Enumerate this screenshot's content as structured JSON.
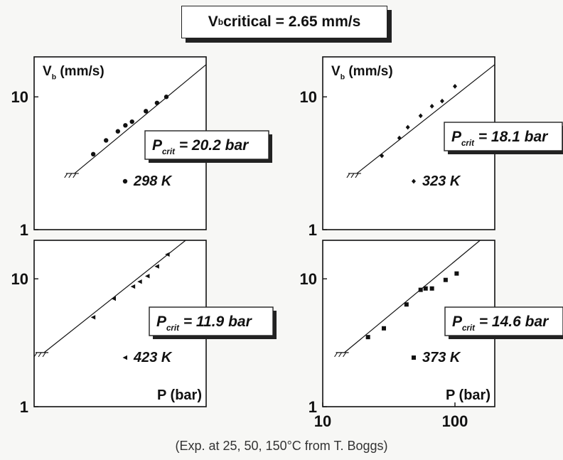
{
  "header": {
    "symbol": "V",
    "subscript": "b",
    "text": " critical = 2.65 mm/s"
  },
  "caption": "(Exp. at 25, 50, 150°C from T. Boggs)",
  "chart_data": [
    {
      "type": "scatter",
      "xscale": "log",
      "yscale": "log",
      "xlim": [
        10,
        200
      ],
      "ylim": [
        1,
        20
      ],
      "xticks": [],
      "yticks": [
        "1",
        "10"
      ],
      "ylabel": {
        "symbol": "V",
        "subscript": "b",
        "text": " (mm/s)"
      },
      "xlabel": "",
      "pcrit": {
        "symbol": "P",
        "subscript": "crit",
        "text": " = 20.2 bar"
      },
      "temperature": "298 K",
      "marker": "circle",
      "fit": {
        "x": [
          20.2,
          200
        ],
        "y": [
          2.65,
          17.5
        ]
      },
      "points": {
        "x": [
          28,
          35,
          43,
          49,
          55,
          70,
          85,
          100
        ],
        "y": [
          3.7,
          4.7,
          5.5,
          6.1,
          6.5,
          7.8,
          9.0,
          10.0
        ]
      }
    },
    {
      "type": "scatter",
      "xscale": "log",
      "yscale": "log",
      "xlim": [
        10,
        200
      ],
      "ylim": [
        1,
        20
      ],
      "xticks": [],
      "yticks": [
        "1",
        "10"
      ],
      "ylabel": {
        "symbol": "V",
        "subscript": "b",
        "text": " (mm/s)"
      },
      "xlabel": "",
      "pcrit": {
        "symbol": "P",
        "subscript": "crit",
        "text": " = 18.1 bar"
      },
      "temperature": "323 K",
      "marker": "diamond",
      "fit": {
        "x": [
          18.1,
          200
        ],
        "y": [
          2.65,
          17.5
        ]
      },
      "points": {
        "x": [
          28,
          38,
          44,
          55,
          67,
          80,
          100
        ],
        "y": [
          3.6,
          4.9,
          5.9,
          7.2,
          8.5,
          9.3,
          12.0
        ]
      }
    },
    {
      "type": "scatter",
      "xscale": "log",
      "yscale": "log",
      "xlim": [
        10,
        200
      ],
      "ylim": [
        1,
        20
      ],
      "xticks": [],
      "yticks": [
        "1",
        "10"
      ],
      "ylabel": null,
      "xlabel": "P (bar)",
      "pcrit": {
        "symbol": "P",
        "subscript": "crit",
        "text": " = 11.9 bar"
      },
      "temperature": "423 K",
      "marker": "triangle",
      "fit": {
        "x": [
          11.9,
          140
        ],
        "y": [
          2.65,
          20
        ]
      },
      "points": {
        "x": [
          28,
          40,
          56,
          63,
          72,
          85,
          102
        ],
        "y": [
          5.0,
          7.0,
          8.7,
          9.5,
          10.5,
          12.5,
          15.5
        ]
      }
    },
    {
      "type": "scatter",
      "xscale": "log",
      "yscale": "log",
      "xlim": [
        10,
        200
      ],
      "ylim": [
        1,
        20
      ],
      "xticks": [
        "10",
        "100"
      ],
      "yticks": [
        "1",
        "10"
      ],
      "ylabel": null,
      "xlabel": "P (bar)",
      "pcrit": {
        "symbol": "P",
        "subscript": "crit",
        "text": " = 14.6 bar"
      },
      "temperature": "373 K",
      "marker": "square",
      "fit": {
        "x": [
          14.6,
          155
        ],
        "y": [
          2.65,
          20
        ]
      },
      "points": {
        "x": [
          22,
          29,
          43,
          55,
          60,
          67,
          85,
          103
        ],
        "y": [
          3.5,
          4.1,
          6.3,
          8.2,
          8.4,
          8.4,
          9.8,
          11.0
        ]
      }
    }
  ]
}
